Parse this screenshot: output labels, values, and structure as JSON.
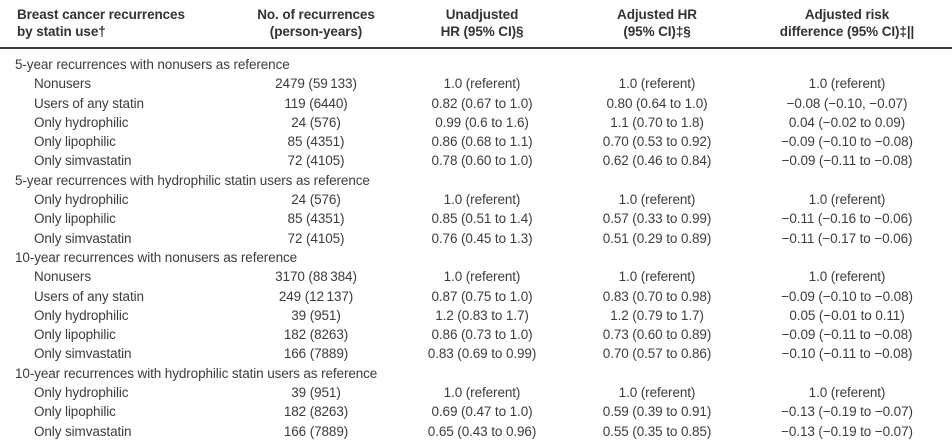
{
  "table": {
    "columns": [
      {
        "id": "group",
        "line1": "Breast cancer recurrences",
        "line2": "by statin use†"
      },
      {
        "id": "recurrences_py",
        "line1": "No. of recurrences",
        "line2": "(person-years)"
      },
      {
        "id": "unadjusted_hr",
        "line1": "Unadjusted",
        "line2": "HR (95% CI)§"
      },
      {
        "id": "adjusted_hr",
        "line1": "Adjusted HR",
        "line2": "(95% CI)‡§"
      },
      {
        "id": "adjusted_risk_diff",
        "line1": "Adjusted risk",
        "line2": "difference (95% CI)‡||"
      }
    ],
    "sections": [
      {
        "title": "5-year recurrences with nonusers as reference",
        "rows": [
          {
            "group": "Nonusers",
            "recurrences_py": "2479 (59 133)",
            "unadjusted_hr": "1.0 (referent)",
            "adjusted_hr": "1.0 (referent)",
            "adjusted_risk_diff": "1.0 (referent)"
          },
          {
            "group": "Users of any statin",
            "recurrences_py": "119 (6440)",
            "unadjusted_hr": "0.82 (0.67 to 1.0)",
            "adjusted_hr": "0.80 (0.64 to 1.0)",
            "adjusted_risk_diff": "−0.08 (−0.10, −0.07)"
          },
          {
            "group": "Only hydrophilic",
            "recurrences_py": "24 (576)",
            "unadjusted_hr": "0.99 (0.6 to 1.6)",
            "adjusted_hr": "1.1 (0.70 to 1.8)",
            "adjusted_risk_diff": "0.04 (−0.02 to 0.09)"
          },
          {
            "group": "Only lipophilic",
            "recurrences_py": "85 (4351)",
            "unadjusted_hr": "0.86 (0.68 to 1.1)",
            "adjusted_hr": "0.70 (0.53 to 0.92)",
            "adjusted_risk_diff": "−0.09 (−0.10 to −0.08)"
          },
          {
            "group": "Only simvastatin",
            "recurrences_py": "72 (4105)",
            "unadjusted_hr": "0.78 (0.60 to 1.0)",
            "adjusted_hr": "0.62 (0.46 to 0.84)",
            "adjusted_risk_diff": "−0.09 (−0.11 to −0.08)"
          }
        ]
      },
      {
        "title": "5-year recurrences with hydrophilic statin users as reference",
        "rows": [
          {
            "group": "Only hydrophilic",
            "recurrences_py": "24 (576)",
            "unadjusted_hr": "1.0 (referent)",
            "adjusted_hr": "1.0 (referent)",
            "adjusted_risk_diff": "1.0 (referent)"
          },
          {
            "group": "Only lipophilic",
            "recurrences_py": "85 (4351)",
            "unadjusted_hr": "0.85 (0.51 to 1.4)",
            "adjusted_hr": "0.57 (0.33 to 0.99)",
            "adjusted_risk_diff": "−0.11 (−0.16 to −0.06)"
          },
          {
            "group": "Only simvastatin",
            "recurrences_py": "72 (4105)",
            "unadjusted_hr": "0.76 (0.45 to 1.3)",
            "adjusted_hr": "0.51 (0.29 to 0.89)",
            "adjusted_risk_diff": "−0.11 (−0.17 to −0.06)"
          }
        ]
      },
      {
        "title": "10-year recurrences with nonusers as reference",
        "rows": [
          {
            "group": "Nonusers",
            "recurrences_py": "3170 (88 384)",
            "unadjusted_hr": "1.0 (referent)",
            "adjusted_hr": "1.0 (referent)",
            "adjusted_risk_diff": "1.0 (referent)"
          },
          {
            "group": "Users of any statin",
            "recurrences_py": "249 (12 137)",
            "unadjusted_hr": "0.87 (0.75 to 1.0)",
            "adjusted_hr": "0.83 (0.70 to 0.98)",
            "adjusted_risk_diff": "−0.09 (−0.10 to −0.08)"
          },
          {
            "group": "Only hydrophilic",
            "recurrences_py": "39 (951)",
            "unadjusted_hr": "1.2 (0.83 to 1.7)",
            "adjusted_hr": "1.2 (0.79 to 1.7)",
            "adjusted_risk_diff": "0.05 (−0.01 to 0.11)"
          },
          {
            "group": "Only lipophilic",
            "recurrences_py": "182 (8263)",
            "unadjusted_hr": "0.86 (0.73 to 1.0)",
            "adjusted_hr": "0.73 (0.60 to 0.89)",
            "adjusted_risk_diff": "−0.09 (−0.11 to −0.08)"
          },
          {
            "group": "Only simvastatin",
            "recurrences_py": "166 (7889)",
            "unadjusted_hr": "0.83 (0.69 to 0.99)",
            "adjusted_hr": "0.70 (0.57 to 0.86)",
            "adjusted_risk_diff": "−0.10 (−0.11 to −0.08)"
          }
        ]
      },
      {
        "title": "10-year recurrences with hydrophilic statin users as reference",
        "rows": [
          {
            "group": "Only hydrophilic",
            "recurrences_py": "39 (951)",
            "unadjusted_hr": "1.0 (referent)",
            "adjusted_hr": "1.0 (referent)",
            "adjusted_risk_diff": "1.0 (referent)"
          },
          {
            "group": "Only lipophilic",
            "recurrences_py": "182 (8263)",
            "unadjusted_hr": "0.69 (0.47 to 1.0)",
            "adjusted_hr": "0.59 (0.39 to 0.91)",
            "adjusted_risk_diff": "−0.13 (−0.19 to −0.07)"
          },
          {
            "group": "Only simvastatin",
            "recurrences_py": "166 (7889)",
            "unadjusted_hr": "0.65 (0.43 to 0.96)",
            "adjusted_hr": "0.55 (0.35 to 0.85)",
            "adjusted_risk_diff": "−0.13 (−0.19 to −0.07)"
          }
        ]
      }
    ]
  }
}
